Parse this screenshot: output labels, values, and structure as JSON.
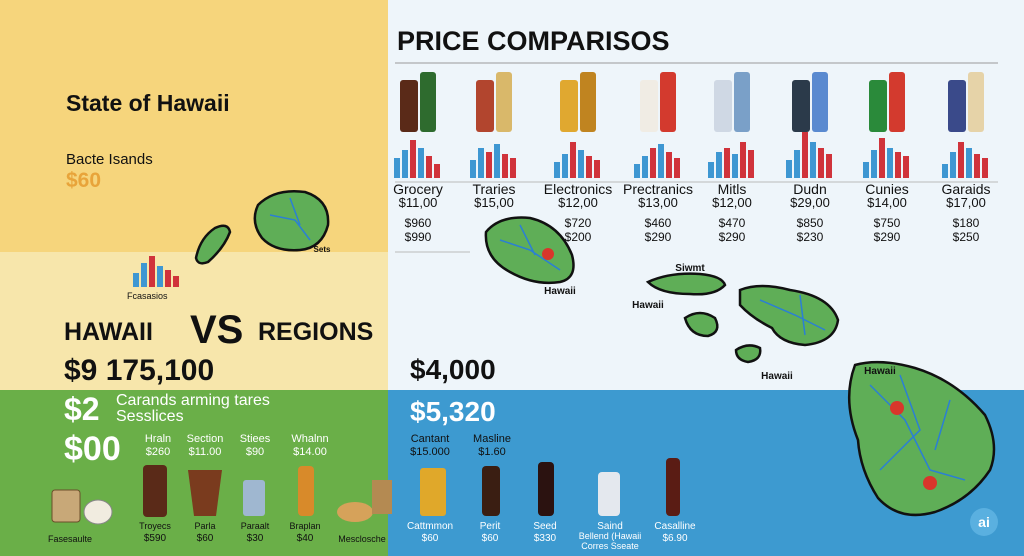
{
  "header": {
    "title": "PRICE  COMPARISOS"
  },
  "left": {
    "state": "State of Hawaii",
    "subtitle": "Bacte Isands",
    "subtitle_price": "$60",
    "chart_caption": "Fcasasios",
    "versus": {
      "left": "HAWAII",
      "middle": "VS",
      "right": "REGIONS"
    },
    "total": "$9 175,100",
    "line2_price": "$2",
    "line2_text": [
      "Carands arming tares",
      "Sesslices"
    ],
    "line3_price": "$00"
  },
  "right": {
    "price_1": "$4,000",
    "price_2": "$5,320"
  },
  "products": [
    {
      "name": "Grocery",
      "price": "$11,00",
      "values": [
        "$960",
        "$990"
      ]
    },
    {
      "name": "Traries",
      "price": "$15,00",
      "values": []
    },
    {
      "name": "Electronics",
      "price": "$12,00",
      "values": [
        "$720",
        "$200"
      ]
    },
    {
      "name": "Prectranics",
      "price": "$13,00",
      "values": [
        "$460",
        "$290"
      ]
    },
    {
      "name": "Mitls",
      "price": "$12,00",
      "values": [
        "$470",
        "$290"
      ]
    },
    {
      "name": "Dudn",
      "price": "$29,00",
      "values": [
        "$850",
        "$230"
      ]
    },
    {
      "name": "Cunies",
      "price": "$14,00",
      "values": [
        "$750",
        "$290"
      ]
    },
    {
      "name": "Garaids",
      "price": "$17,00",
      "values": [
        "$180",
        "$250"
      ]
    }
  ],
  "map_labels": [
    "Sets",
    "Hawaii",
    "Siwmt",
    "Hawaii",
    "Hawaii",
    "Hawaii"
  ],
  "bottom_left": {
    "top_items": [
      {
        "name": "Hraln",
        "price": "$260"
      },
      {
        "name": "Section",
        "price": "$11.00"
      },
      {
        "name": "Stiees",
        "price": "$90"
      },
      {
        "name": "Whalnn",
        "price": "$14.00"
      }
    ],
    "items": [
      {
        "name": "Fasesaulte"
      },
      {
        "name": "Troyecs",
        "price": "$590"
      },
      {
        "name": "Parla",
        "price": "$60"
      },
      {
        "name": "Paraalt",
        "price": "$30"
      },
      {
        "name": "Braplan",
        "price": "$40"
      },
      {
        "name": "Mesclosche"
      }
    ]
  },
  "bottom_right": {
    "top_items": [
      {
        "name": "Cantant",
        "price": "$15.000"
      },
      {
        "name": "Masline",
        "price": "$1.60"
      }
    ],
    "items": [
      {
        "name": "Cattmmon",
        "price": "$60"
      },
      {
        "name": "Perit",
        "price": "$60"
      },
      {
        "name": "Seed",
        "price": "$330"
      },
      {
        "name": "Saind",
        "lines": [
          "Bellend (Hawaii",
          "Corres Sseate"
        ]
      },
      {
        "name": "Casalline",
        "price": "$6.90"
      }
    ]
  },
  "badge": "ai"
}
